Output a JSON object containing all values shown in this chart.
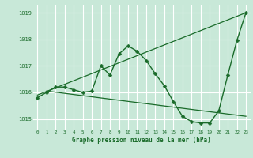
{
  "title": "Graphe pression niveau de la mer (hPa)",
  "bg_color": "#c8e8d8",
  "grid_color": "#ffffff",
  "line_color": "#1a6b2a",
  "text_color": "#1a6b2a",
  "xlim": [
    -0.5,
    23.5
  ],
  "ylim": [
    1014.6,
    1019.3
  ],
  "yticks": [
    1015,
    1016,
    1017,
    1018,
    1019
  ],
  "xticks": [
    0,
    1,
    2,
    3,
    4,
    5,
    6,
    7,
    8,
    9,
    10,
    11,
    12,
    13,
    14,
    15,
    16,
    17,
    18,
    19,
    20,
    21,
    22,
    23
  ],
  "series": [
    {
      "x": [
        0,
        1,
        2,
        3,
        4,
        5,
        6,
        7,
        8,
        9,
        10,
        11,
        12,
        13,
        14,
        15,
        16,
        17,
        18,
        19,
        20,
        21,
        22,
        23
      ],
      "y": [
        1015.8,
        1016.0,
        1016.2,
        1016.2,
        1016.1,
        1016.0,
        1016.05,
        1017.0,
        1016.65,
        1017.45,
        1017.75,
        1017.55,
        1017.2,
        1016.7,
        1016.25,
        1015.65,
        1015.1,
        1014.9,
        1014.85,
        1014.85,
        1015.3,
        1016.65,
        1017.95,
        1019.0
      ],
      "marker": "D",
      "markersize": 2.5,
      "linewidth": 1.0
    },
    {
      "x": [
        1,
        23
      ],
      "y": [
        1016.05,
        1015.1
      ],
      "marker": "None",
      "markersize": 0,
      "linewidth": 0.9
    },
    {
      "x": [
        0,
        23
      ],
      "y": [
        1015.9,
        1019.0
      ],
      "marker": "None",
      "markersize": 0,
      "linewidth": 0.9
    }
  ]
}
